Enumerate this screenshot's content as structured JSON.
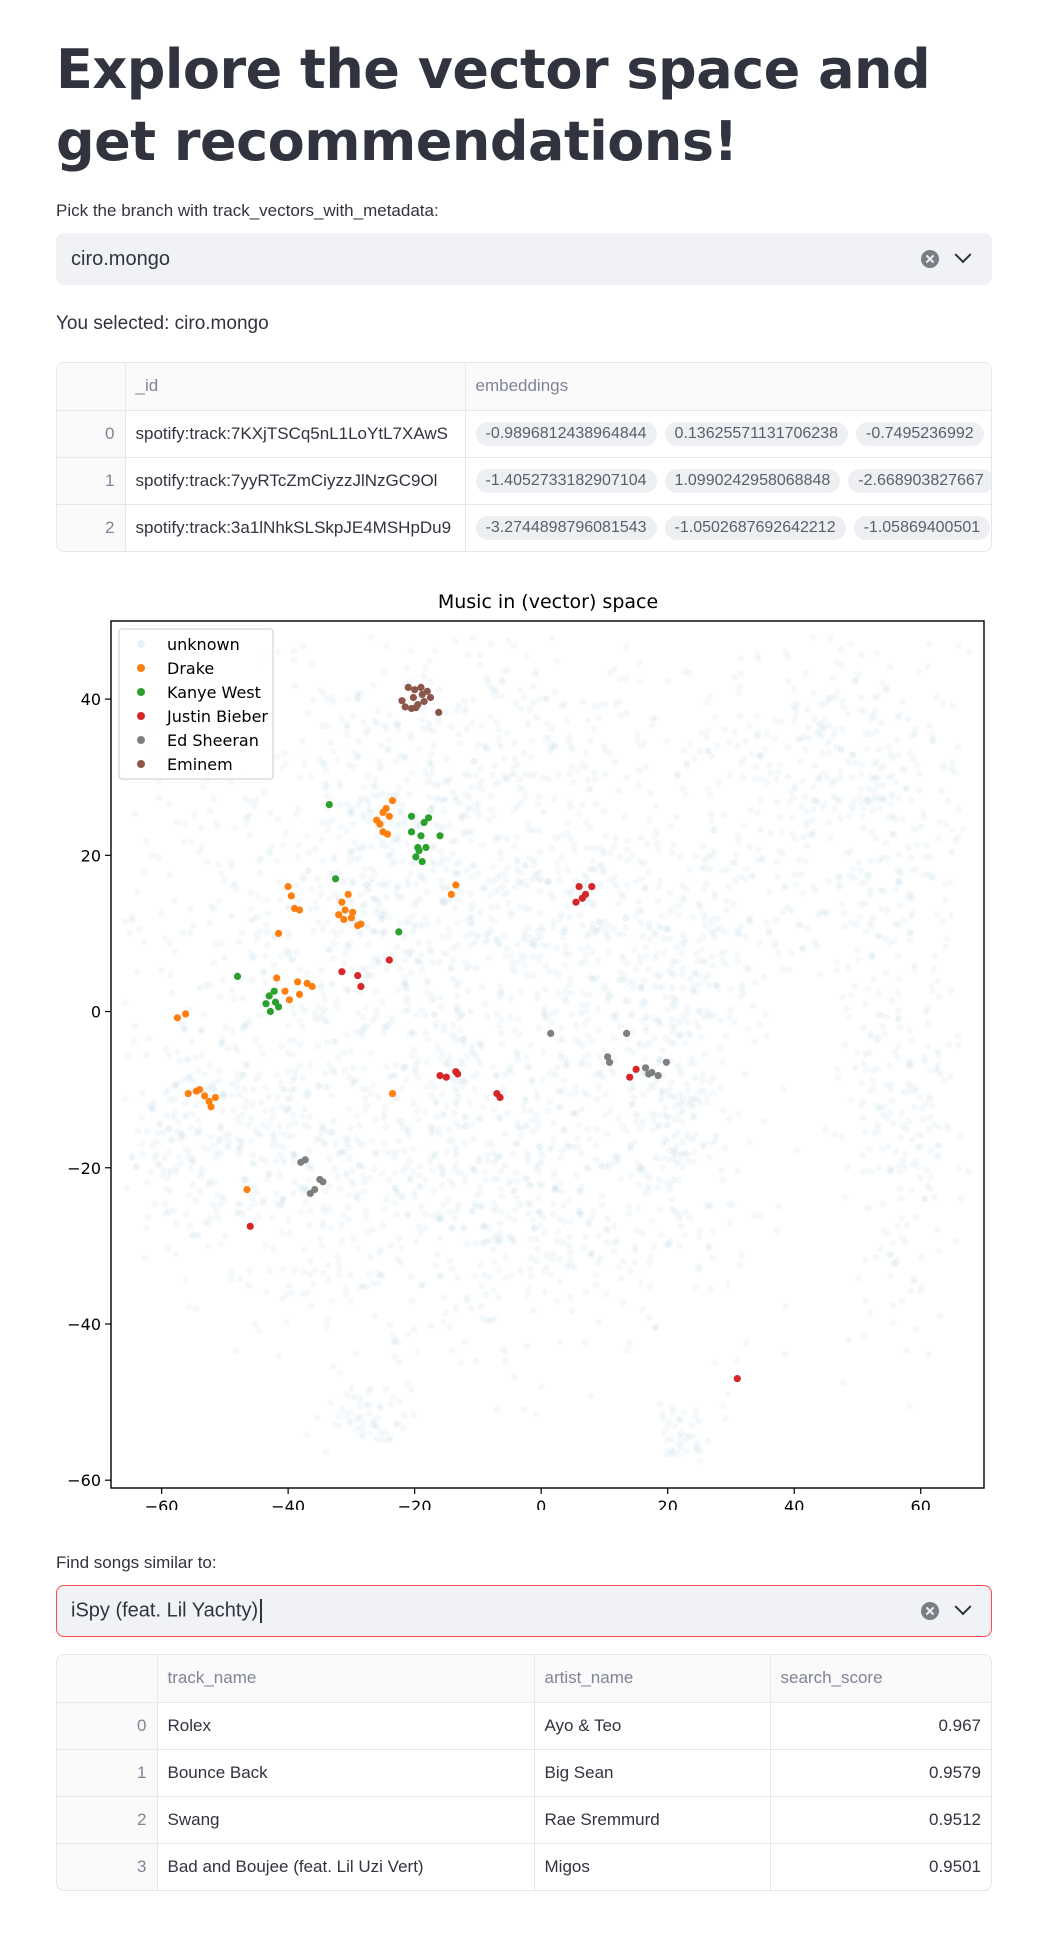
{
  "title": "Explore the vector space and get recommendations!",
  "branch_picker": {
    "label": "Pick the branch with track_vectors_with_metadata:",
    "value": "ciro.mongo"
  },
  "selected_text": "You selected: ciro.mongo",
  "vectors_table": {
    "columns": [
      "",
      "_id",
      "embeddings"
    ],
    "rows": [
      {
        "index": "0",
        "id": "spotify:track:7KXjTSCq5nL1LoYtL7XAwS",
        "embeddings": [
          "-0.9896812438964844",
          "0.13625571131706238",
          "-0.7495236992"
        ]
      },
      {
        "index": "1",
        "id": "spotify:track:7yyRTcZmCiyzzJlNzGC9Ol",
        "embeddings": [
          "-1.4052733182907104",
          "1.0990242958068848",
          "-2.668903827667"
        ]
      },
      {
        "index": "2",
        "id": "spotify:track:3a1lNhkSLSkpJE4MSHpDu9",
        "embeddings": [
          "-3.2744898796081543",
          "-1.0502687692642212",
          "-1.05869400501"
        ]
      }
    ]
  },
  "chart_data": {
    "type": "scatter",
    "title": "Music in (vector) space",
    "xlim": [
      -68,
      70
    ],
    "ylim": [
      -61,
      50
    ],
    "xticks": [
      -60,
      -40,
      -20,
      0,
      20,
      40,
      60
    ],
    "yticks": [
      -60,
      -40,
      -20,
      0,
      20,
      40
    ],
    "legend_position": "top-left",
    "grid": false,
    "series": [
      {
        "name": "unknown",
        "color": "#a9cbe0",
        "opacity": 0.12,
        "points": []
      },
      {
        "name": "Drake",
        "color": "#ff7f0e",
        "points": [
          [
            -25,
            23
          ],
          [
            -24,
            25
          ],
          [
            -25.5,
            24
          ],
          [
            -23.5,
            27
          ],
          [
            -24.5,
            26
          ],
          [
            -26,
            24.5
          ],
          [
            -25,
            25.5
          ],
          [
            -24.3,
            22.7
          ],
          [
            -31,
            13
          ],
          [
            -30,
            12
          ],
          [
            -29,
            11
          ],
          [
            -31.5,
            14
          ],
          [
            -30.5,
            15
          ],
          [
            -28.5,
            11.2
          ],
          [
            -31.2,
            11.8
          ],
          [
            -29.8,
            12.7
          ],
          [
            -32,
            12.4
          ],
          [
            -40,
            16
          ],
          [
            -39.5,
            14.8
          ],
          [
            -39,
            13.2
          ],
          [
            -38.2,
            13
          ],
          [
            -41.5,
            10
          ],
          [
            -37,
            3.6
          ],
          [
            -36.2,
            3.2
          ],
          [
            -38.5,
            3.8
          ],
          [
            -38.2,
            2.2
          ],
          [
            -40.5,
            2.6
          ],
          [
            -41.8,
            4.3
          ],
          [
            -39.8,
            1.5
          ],
          [
            -57.5,
            -0.8
          ],
          [
            -56.2,
            -0.3
          ],
          [
            -55.8,
            -10.5
          ],
          [
            -54.5,
            -10.2
          ],
          [
            -53.2,
            -10.8
          ],
          [
            -52.5,
            -11.5
          ],
          [
            -52.2,
            -12.2
          ],
          [
            -51.5,
            -11
          ],
          [
            -54,
            -10
          ],
          [
            -13.5,
            16.2
          ],
          [
            -14.2,
            15
          ],
          [
            -23.5,
            -10.5
          ],
          [
            -46.5,
            -22.8
          ]
        ]
      },
      {
        "name": "Kanye West",
        "color": "#2ca02c",
        "points": [
          [
            -19,
            22.5
          ],
          [
            -18.2,
            21
          ],
          [
            -19.5,
            21
          ],
          [
            -18.5,
            24.2
          ],
          [
            -17.8,
            24.8
          ],
          [
            -20.5,
            23
          ],
          [
            -19.8,
            19.8
          ],
          [
            -18.8,
            19.2
          ],
          [
            -19.3,
            20.6
          ],
          [
            -16,
            22.5
          ],
          [
            -20.5,
            25
          ],
          [
            -33.5,
            26.5
          ],
          [
            -32.5,
            17
          ],
          [
            -22.5,
            10.2
          ],
          [
            -43,
            2
          ],
          [
            -42,
            1.2
          ],
          [
            -43.5,
            1
          ],
          [
            -42.2,
            2.6
          ],
          [
            -41.5,
            0.6
          ],
          [
            -42.8,
            0
          ],
          [
            -48,
            4.5
          ]
        ]
      },
      {
        "name": "Justin Bieber",
        "color": "#d62728",
        "points": [
          [
            6,
            16
          ],
          [
            7,
            15
          ],
          [
            8,
            16
          ],
          [
            6.5,
            14.5
          ],
          [
            5.5,
            14
          ],
          [
            -24,
            6.6
          ],
          [
            -29,
            4.6
          ],
          [
            -28.5,
            3.2
          ],
          [
            -31.5,
            5.1
          ],
          [
            -16,
            -8.2
          ],
          [
            -15,
            -8.4
          ],
          [
            -13.2,
            -8
          ],
          [
            -13.5,
            -7.7
          ],
          [
            -6.5,
            -11
          ],
          [
            -7,
            -10.5
          ],
          [
            14,
            -8.4
          ],
          [
            15,
            -7.4
          ],
          [
            -46,
            -27.5
          ],
          [
            31,
            -47
          ]
        ]
      },
      {
        "name": "Ed Sheeran",
        "color": "#7f7f7f",
        "points": [
          [
            1.5,
            -2.8
          ],
          [
            13.5,
            -2.8
          ],
          [
            10.5,
            -5.8
          ],
          [
            10.8,
            -6.5
          ],
          [
            16.5,
            -7.2
          ],
          [
            17.5,
            -7.8
          ],
          [
            18.5,
            -8.2
          ],
          [
            17,
            -8
          ],
          [
            19.8,
            -6.5
          ],
          [
            -38,
            -19.3
          ],
          [
            -37.3,
            -19
          ],
          [
            -35,
            -21.5
          ],
          [
            -34.5,
            -21.8
          ],
          [
            -35.8,
            -22.8
          ],
          [
            -36.5,
            -23.3
          ]
        ]
      },
      {
        "name": "Eminem",
        "color": "#8c564b",
        "points": [
          [
            -21,
            41.5
          ],
          [
            -20,
            41.2
          ],
          [
            -19,
            41.5
          ],
          [
            -18,
            41
          ],
          [
            -21.5,
            39
          ],
          [
            -20.5,
            38.8
          ],
          [
            -19.5,
            39.3
          ],
          [
            -18.5,
            39.7
          ],
          [
            -17.5,
            40.2
          ],
          [
            -22,
            39.8
          ],
          [
            -16.2,
            38.3
          ],
          [
            -20.2,
            40.2
          ],
          [
            -18.8,
            40.6
          ],
          [
            -19.8,
            38.9
          ]
        ]
      }
    ]
  },
  "similar_picker": {
    "label": "Find songs similar to:",
    "value": "iSpy (feat. Lil Yachty)"
  },
  "results_table": {
    "columns": [
      "",
      "track_name",
      "artist_name",
      "search_score"
    ],
    "rows": [
      {
        "index": "0",
        "track_name": "Rolex",
        "artist_name": "Ayo & Teo",
        "search_score": "0.967"
      },
      {
        "index": "1",
        "track_name": "Bounce Back",
        "artist_name": "Big Sean",
        "search_score": "0.9579"
      },
      {
        "index": "2",
        "track_name": "Swang",
        "artist_name": "Rae Sremmurd",
        "search_score": "0.9512"
      },
      {
        "index": "3",
        "track_name": "Bad and Boujee (feat. Lil Uzi Vert)",
        "artist_name": "Migos",
        "search_score": "0.9501"
      }
    ]
  }
}
